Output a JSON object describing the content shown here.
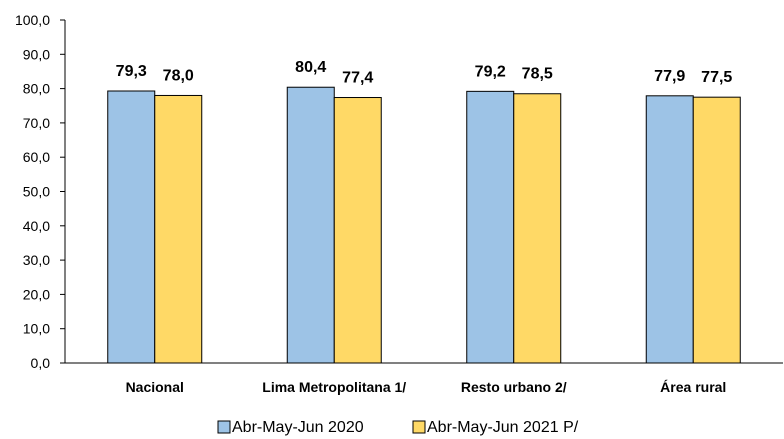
{
  "chart_data": {
    "type": "bar",
    "categories": [
      "Nacional",
      "Lima Metropolitana 1/",
      "Resto urbano 2/",
      "Área rural"
    ],
    "series": [
      {
        "name": "Abr-May-Jun 2020",
        "values": [
          79.3,
          80.4,
          79.2,
          77.9
        ],
        "value_labels": [
          "79,3",
          "80,4",
          "79,2",
          "77,9"
        ],
        "color": "#9DC3E6"
      },
      {
        "name": "Abr-May-Jun 2021 P/",
        "values": [
          78.0,
          77.4,
          78.5,
          77.5
        ],
        "value_labels": [
          "78,0",
          "77,4",
          "78,5",
          "77,5"
        ],
        "color": "#FFD966"
      }
    ],
    "ylim": [
      0,
      100
    ],
    "yticks": [
      "0,0",
      "10,0",
      "20,0",
      "30,0",
      "40,0",
      "50,0",
      "60,0",
      "70,0",
      "80,0",
      "90,0",
      "100,0"
    ],
    "grid": false,
    "legend": "bottom",
    "title": "",
    "xlabel": "",
    "ylabel": ""
  }
}
